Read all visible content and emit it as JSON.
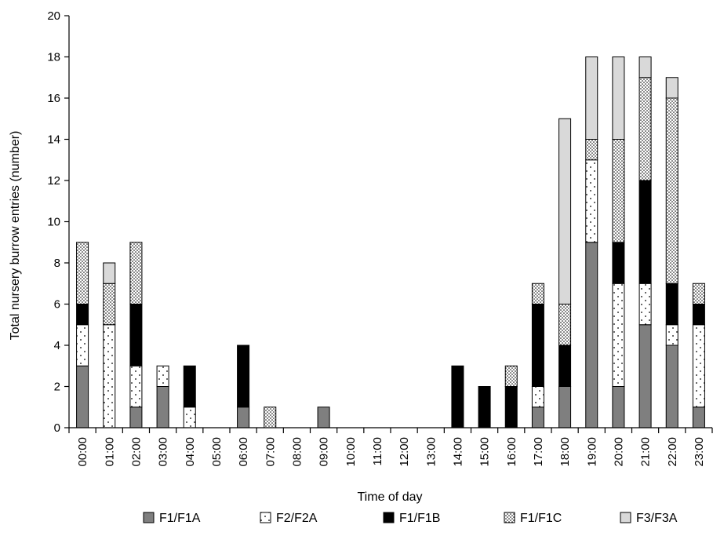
{
  "chart_data": {
    "type": "bar",
    "stacked": true,
    "title": "",
    "xlabel": "Time of day",
    "ylabel": "Total nursery burrow entries (number)",
    "ylim": [
      0,
      20
    ],
    "yticks": [
      0,
      2,
      4,
      6,
      8,
      10,
      12,
      14,
      16,
      18,
      20
    ],
    "grid": false,
    "legend_position": "bottom",
    "categories": [
      "00:00",
      "01:00",
      "02:00",
      "03:00",
      "04:00",
      "05:00",
      "06:00",
      "07:00",
      "08:00",
      "09:00",
      "10:00",
      "11:00",
      "12:00",
      "13:00",
      "14:00",
      "15:00",
      "16:00",
      "17:00",
      "18:00",
      "19:00",
      "20:00",
      "21:00",
      "22:00",
      "23:00"
    ],
    "series": [
      {
        "name": "F1/F1A",
        "pattern": "gray",
        "color": "#7f7f7f",
        "values": [
          3,
          0,
          1,
          2,
          0,
          0,
          1,
          0,
          0,
          1,
          0,
          0,
          0,
          0,
          0,
          0,
          0,
          1,
          2,
          9,
          2,
          5,
          4,
          1
        ]
      },
      {
        "name": "F2/F2A",
        "pattern": "sparse-dots",
        "color": "#ffffff",
        "values": [
          2,
          5,
          2,
          1,
          1,
          0,
          0,
          0,
          0,
          0,
          0,
          0,
          0,
          0,
          0,
          0,
          0,
          1,
          0,
          4,
          5,
          2,
          1,
          4
        ]
      },
      {
        "name": "F1/F1B",
        "pattern": "black",
        "color": "#000000",
        "values": [
          1,
          0,
          3,
          0,
          2,
          0,
          3,
          0,
          0,
          0,
          0,
          0,
          0,
          0,
          3,
          2,
          2,
          4,
          2,
          0,
          2,
          5,
          2,
          1
        ]
      },
      {
        "name": "F1/F1C",
        "pattern": "dense-dots",
        "color": "#ffffff",
        "values": [
          3,
          2,
          3,
          0,
          0,
          0,
          0,
          1,
          0,
          0,
          0,
          0,
          0,
          0,
          0,
          0,
          1,
          1,
          2,
          1,
          5,
          5,
          9,
          1
        ]
      },
      {
        "name": "F3/F3A",
        "pattern": "light-gray",
        "color": "#d9d9d9",
        "values": [
          0,
          1,
          0,
          0,
          0,
          0,
          0,
          0,
          0,
          0,
          0,
          0,
          0,
          0,
          0,
          0,
          0,
          0,
          9,
          4,
          4,
          1,
          1,
          0
        ]
      }
    ]
  }
}
